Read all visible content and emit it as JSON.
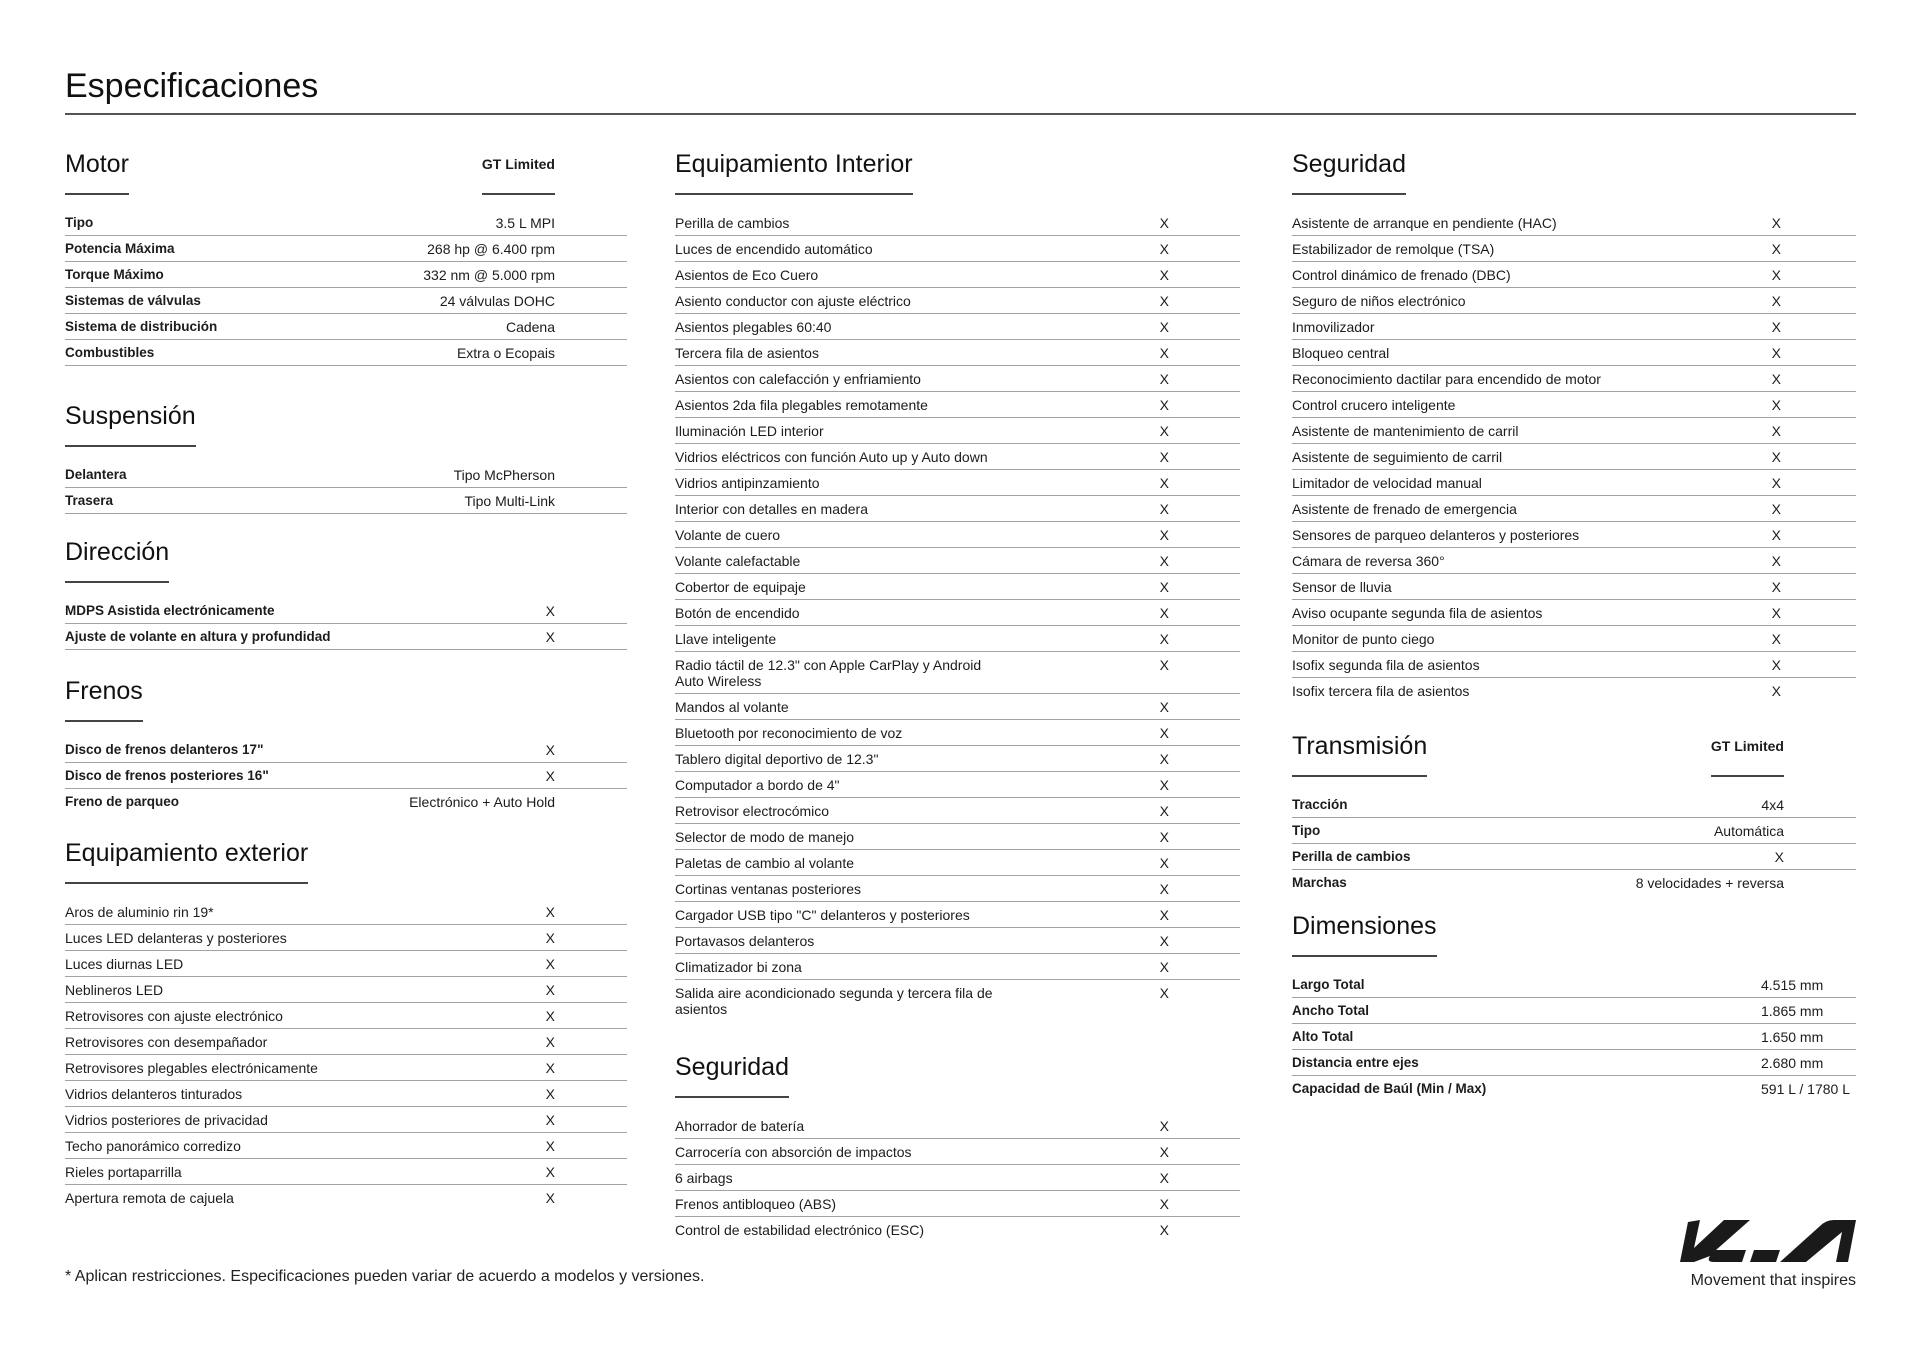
{
  "page": {
    "title": "Especificaciones",
    "footnote": "* Aplican restricciones. Especificaciones pueden variar de acuerdo a modelos y versiones.",
    "brand_logo": "KIA",
    "tagline": "Movement that inspires"
  },
  "sections": {
    "motor": {
      "title": "Motor",
      "column": "GT Limited",
      "rows": [
        [
          "Tipo",
          "3.5 L MPI"
        ],
        [
          "Potencia Máxima",
          "268 hp @ 6.400 rpm"
        ],
        [
          "Torque Máximo",
          "332 nm @ 5.000 rpm"
        ],
        [
          "Sistemas de válvulas",
          "24 válvulas DOHC"
        ],
        [
          "Sistema de distribución",
          "Cadena"
        ],
        [
          "Combustibles",
          "Extra o Ecopais"
        ]
      ]
    },
    "suspension": {
      "title": "Suspensión",
      "rows": [
        [
          "Delantera",
          "Tipo McPherson"
        ],
        [
          "Trasera",
          "Tipo Multi-Link"
        ]
      ]
    },
    "direccion": {
      "title": "Dirección",
      "rows": [
        [
          "MDPS Asistida electrónicamente",
          "X"
        ],
        [
          "Ajuste de volante en altura y profundidad",
          "X"
        ]
      ]
    },
    "frenos": {
      "title": "Frenos",
      "rows": [
        [
          "Disco de frenos delanteros 17\"",
          "X"
        ],
        [
          "Disco de frenos posteriores 16\"",
          "X"
        ],
        [
          "Freno de parqueo",
          "Electrónico + Auto Hold"
        ]
      ]
    },
    "exterior": {
      "title": "Equipamiento exterior",
      "rows": [
        [
          "Aros de aluminio rin 19*",
          "X"
        ],
        [
          "Luces LED delanteras y posteriores",
          "X"
        ],
        [
          "Luces diurnas LED",
          "X"
        ],
        [
          "Neblineros LED",
          "X"
        ],
        [
          "Retrovisores con ajuste electrónico",
          "X"
        ],
        [
          "Retrovisores con desempañador",
          "X"
        ],
        [
          "Retrovisores plegables electrónicamente",
          "X"
        ],
        [
          "Vidrios delanteros tinturados",
          "X"
        ],
        [
          "Vidrios posteriores de privacidad",
          "X"
        ],
        [
          "Techo panorámico corredizo",
          "X"
        ],
        [
          "Rieles portaparrilla",
          "X"
        ],
        [
          "Apertura remota de cajuela",
          "X"
        ]
      ]
    },
    "interior": {
      "title": "Equipamiento Interior",
      "rows": [
        [
          "Perilla de cambios",
          "X"
        ],
        [
          "Luces de encendido automático",
          "X"
        ],
        [
          "Asientos de Eco Cuero",
          "X"
        ],
        [
          "Asiento conductor con ajuste eléctrico",
          "X"
        ],
        [
          "Asientos plegables 60:40",
          "X"
        ],
        [
          "Tercera fila de asientos",
          "X"
        ],
        [
          "Asientos con calefacción y enfriamiento",
          "X"
        ],
        [
          "Asientos 2da fila plegables remotamente",
          "X"
        ],
        [
          "Iluminación LED interior",
          "X"
        ],
        [
          "Vidrios eléctricos con función Auto up y Auto down",
          "X"
        ],
        [
          "Vidrios antipinzamiento",
          "X"
        ],
        [
          "Interior con detalles en madera",
          "X"
        ],
        [
          "Volante de cuero",
          "X"
        ],
        [
          "Volante calefactable",
          "X"
        ],
        [
          "Cobertor de equipaje",
          "X"
        ],
        [
          "Botón de encendido",
          "X"
        ],
        [
          "Llave inteligente",
          "X"
        ],
        [
          "Radio táctil de 12.3\" con Apple CarPlay y Android\nAuto Wireless",
          "X"
        ],
        [
          "Mandos al volante",
          "X"
        ],
        [
          "Bluetooth por reconocimiento de voz",
          "X"
        ],
        [
          "Tablero digital deportivo de 12.3\"",
          "X"
        ],
        [
          "Computador a bordo de 4\"",
          "X"
        ],
        [
          "Retrovisor electrocómico",
          "X"
        ],
        [
          "Selector de modo de manejo",
          "X"
        ],
        [
          "Paletas de cambio al volante",
          "X"
        ],
        [
          "Cortinas ventanas posteriores",
          "X"
        ],
        [
          "Cargador USB tipo \"C\" delanteros y posteriores",
          "X"
        ],
        [
          "Portavasos delanteros",
          "X"
        ],
        [
          "Climatizador bi zona",
          "X"
        ],
        [
          "Salida aire acondicionado segunda y tercera fila de\nasientos",
          "X"
        ]
      ]
    },
    "seguridad_mid": {
      "title": "Seguridad",
      "rows": [
        [
          "Ahorrador de batería",
          "X"
        ],
        [
          "Carrocería con absorción de impactos",
          "X"
        ],
        [
          "6 airbags",
          "X"
        ],
        [
          "Frenos antibloqueo (ABS)",
          "X"
        ],
        [
          "Control de estabilidad electrónico (ESC)",
          "X"
        ]
      ]
    },
    "seguridad": {
      "title": "Seguridad",
      "rows": [
        [
          "Asistente de arranque en pendiente (HAC)",
          "X"
        ],
        [
          "Estabilizador de remolque (TSA)",
          "X"
        ],
        [
          "Control dinámico de frenado (DBC)",
          "X"
        ],
        [
          "Seguro de niños electrónico",
          "X"
        ],
        [
          "Inmovilizador",
          "X"
        ],
        [
          "Bloqueo central",
          "X"
        ],
        [
          "Reconocimiento dactilar para encendido de motor",
          "X"
        ],
        [
          "Control crucero inteligente",
          "X"
        ],
        [
          "Asistente de mantenimiento de carril",
          "X"
        ],
        [
          "Asistente de seguimiento de carril",
          "X"
        ],
        [
          "Limitador de velocidad manual",
          "X"
        ],
        [
          "Asistente de frenado de emergencia",
          "X"
        ],
        [
          "Sensores de parqueo delanteros y posteriores",
          "X"
        ],
        [
          "Cámara de reversa 360°",
          "X"
        ],
        [
          "Sensor de lluvia",
          "X"
        ],
        [
          "Aviso ocupante segunda fila de asientos",
          "X"
        ],
        [
          "Monitor de punto ciego",
          "X"
        ],
        [
          "Isofix segunda fila de asientos",
          "X"
        ],
        [
          "Isofix tercera fila de asientos",
          "X"
        ]
      ]
    },
    "transmision": {
      "title": "Transmisión",
      "column": "GT Limited",
      "rows": [
        [
          "Tracción",
          "4x4"
        ],
        [
          "Tipo",
          "Automática"
        ],
        [
          "Perilla de cambios",
          "X"
        ],
        [
          "Marchas",
          "8 velocidades + reversa"
        ]
      ]
    },
    "dimensiones": {
      "title": "Dimensiones",
      "rows": [
        [
          "Largo Total",
          "4.515 mm"
        ],
        [
          "Ancho Total",
          "1.865 mm"
        ],
        [
          "Alto Total",
          "1.650 mm"
        ],
        [
          "Distancia entre ejes",
          "2.680 mm"
        ],
        [
          "Capacidad de Baúl (Min / Max)",
          "591 L / 1780 L"
        ]
      ]
    }
  }
}
